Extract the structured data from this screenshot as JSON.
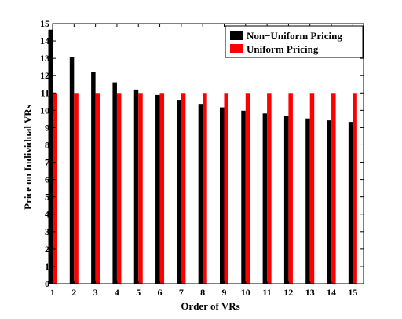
{
  "chart_data": {
    "type": "bar",
    "xlabel": "Order of VRs",
    "ylabel": "Price on Individual VRs",
    "ylim": [
      0,
      15
    ],
    "yticks": [
      0,
      1,
      2,
      3,
      4,
      5,
      6,
      7,
      8,
      9,
      10,
      11,
      12,
      13,
      14,
      15
    ],
    "categories": [
      "1",
      "2",
      "3",
      "4",
      "5",
      "6",
      "7",
      "8",
      "9",
      "10",
      "11",
      "12",
      "13",
      "14",
      "15"
    ],
    "series": [
      {
        "name": "Non−Uniform Pricing",
        "color": "#000000",
        "values": [
          14.65,
          13.05,
          12.2,
          11.62,
          11.2,
          10.88,
          10.6,
          10.37,
          10.17,
          9.98,
          9.82,
          9.67,
          9.53,
          9.42,
          9.33
        ]
      },
      {
        "name": "Uniform Pricing",
        "color": "#ff0000",
        "values": [
          11,
          11,
          11,
          11,
          11,
          11,
          11,
          11,
          11,
          11,
          11,
          11,
          11,
          11,
          11
        ]
      }
    ],
    "legend_position": "top-right",
    "grid": false
  }
}
